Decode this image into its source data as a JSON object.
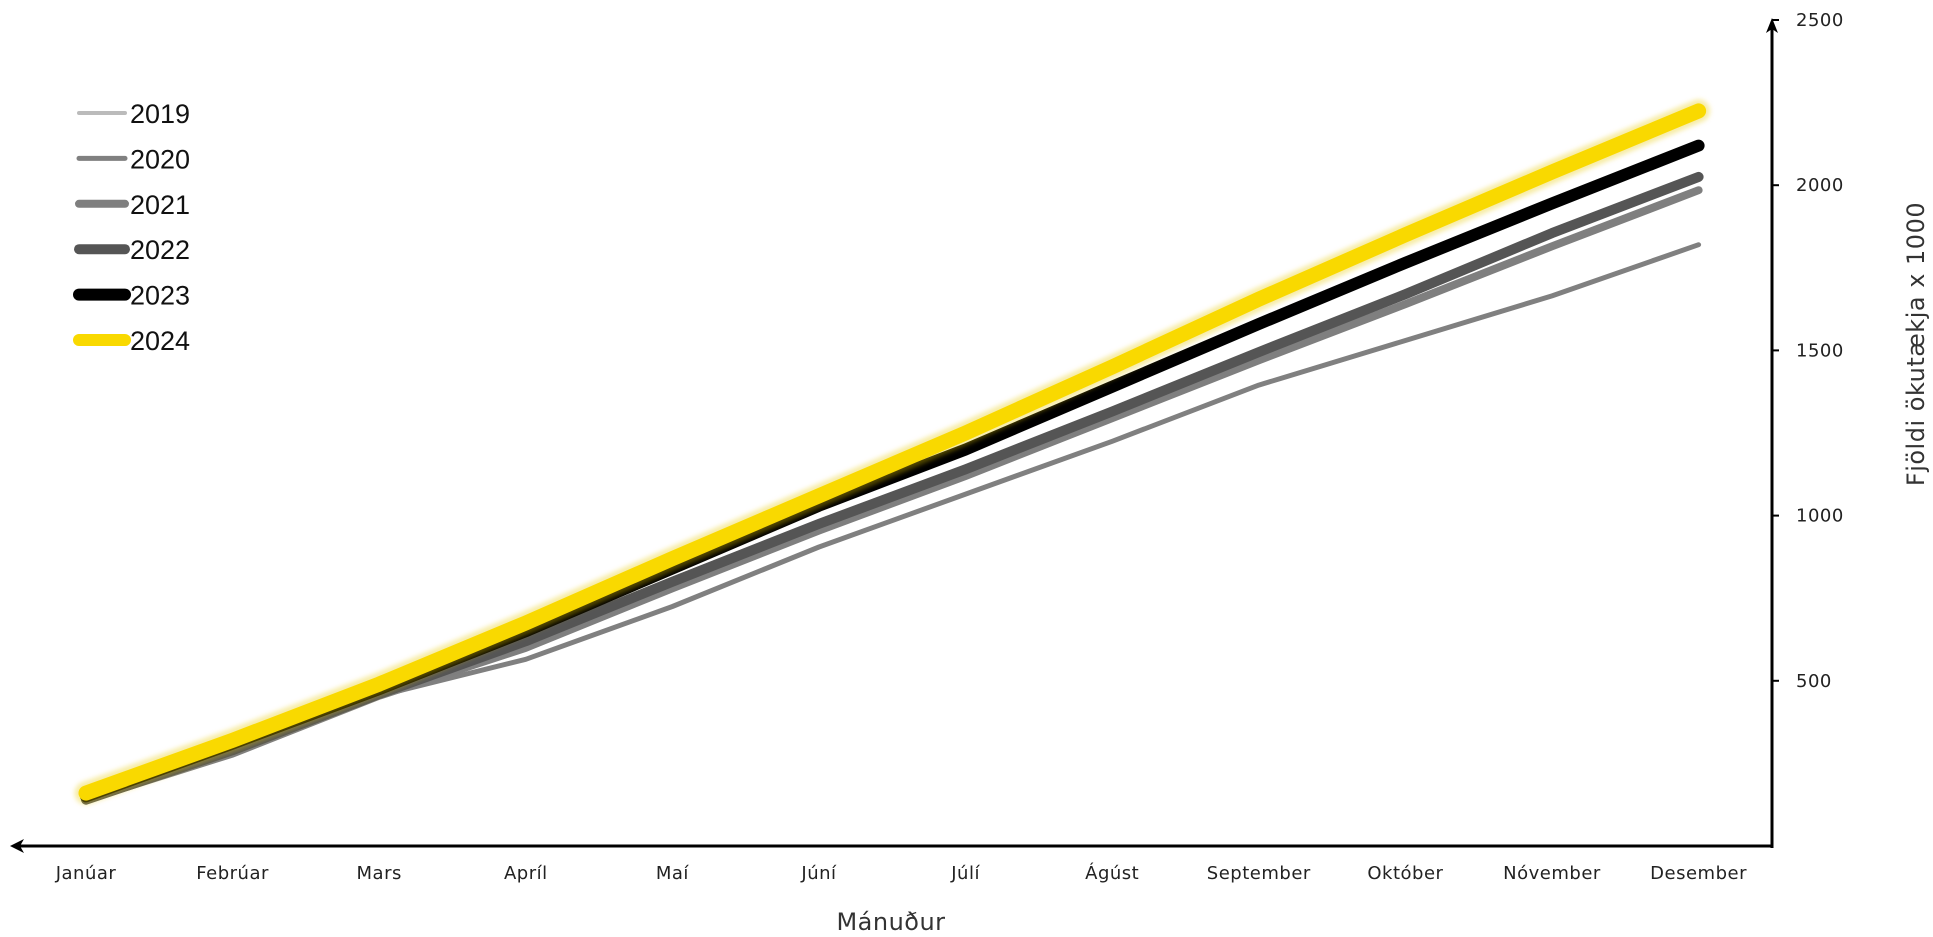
{
  "chart_data": {
    "type": "line",
    "title": "",
    "xlabel": "Mánuður",
    "ylabel": "Fjöldi ökutækja x 1000",
    "categories": [
      "Janúar",
      "Febrúar",
      "Mars",
      "Apríl",
      "Maí",
      "Júní",
      "Júlí",
      "Ágúst",
      "September",
      "Október",
      "Nóvember",
      "Desember"
    ],
    "ylim": [
      0,
      2500
    ],
    "yticks": [
      500,
      1000,
      1500,
      2000,
      2500
    ],
    "y_axis_position": "right",
    "x_axis_direction": "reversed-arrow-left",
    "grid": false,
    "legend_position": "top-left",
    "series": [
      {
        "name": "2019",
        "color": "#bbbbbb",
        "values": [
          null,
          null,
          null,
          null,
          null,
          null,
          null,
          null,
          null,
          null,
          null,
          null
        ]
      },
      {
        "name": "2020",
        "color": "#808080",
        "values": [
          140,
          285,
          455,
          565,
          725,
          905,
          1065,
          1225,
          1395,
          1530,
          1665,
          1820
        ]
      },
      {
        "name": "2021",
        "color": "#7f7f7f",
        "values": [
          140,
          280,
          455,
          600,
          780,
          955,
          1120,
          1295,
          1470,
          1640,
          1815,
          1985
        ]
      },
      {
        "name": "2022",
        "color": "#555555",
        "values": [
          140,
          290,
          460,
          620,
          800,
          975,
          1140,
          1315,
          1495,
          1670,
          1855,
          2025
        ]
      },
      {
        "name": "2023",
        "color": "#000000",
        "values": [
          150,
          310,
          475,
          650,
          840,
          1030,
          1200,
          1390,
          1580,
          1765,
          1945,
          2120
        ]
      },
      {
        "name": "2024",
        "color": "#f9d900",
        "values": [
          160,
          320,
          490,
          675,
          870,
          1060,
          1250,
          1450,
          1655,
          1850,
          2040,
          2225
        ]
      }
    ]
  }
}
